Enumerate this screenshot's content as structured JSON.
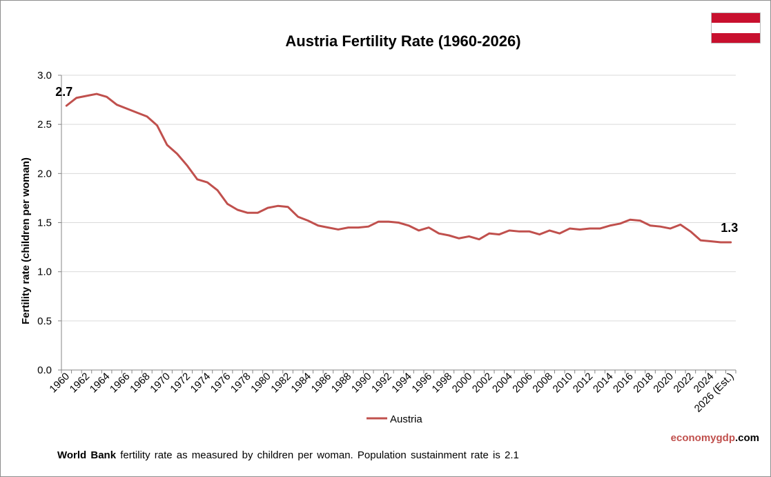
{
  "chart_data": {
    "type": "line",
    "title": "Austria Fertility Rate (1960-2026)",
    "ylabel": "Fertility rate (children per woman)",
    "xlabel": "",
    "ylim": [
      0,
      3.0
    ],
    "yticks": [
      "0.0",
      "0.5",
      "1.0",
      "1.5",
      "2.0",
      "2.5",
      "3.0"
    ],
    "grid": true,
    "legend_position": "bottom",
    "x": [
      "1960",
      "1961",
      "1962",
      "1963",
      "1964",
      "1965",
      "1966",
      "1967",
      "1968",
      "1969",
      "1970",
      "1971",
      "1972",
      "1973",
      "1974",
      "1975",
      "1976",
      "1977",
      "1978",
      "1979",
      "1980",
      "1981",
      "1982",
      "1983",
      "1984",
      "1985",
      "1986",
      "1987",
      "1988",
      "1989",
      "1990",
      "1991",
      "1992",
      "1993",
      "1994",
      "1995",
      "1996",
      "1997",
      "1998",
      "1999",
      "2000",
      "2001",
      "2002",
      "2003",
      "2004",
      "2005",
      "2006",
      "2007",
      "2008",
      "2009",
      "2010",
      "2011",
      "2012",
      "2013",
      "2014",
      "2015",
      "2016",
      "2017",
      "2018",
      "2019",
      "2020",
      "2021",
      "2022",
      "2023",
      "2024",
      "2025",
      "2026 (Est.)"
    ],
    "xtick_labels": [
      "1960",
      "1962",
      "1964",
      "1966",
      "1968",
      "1970",
      "1972",
      "1974",
      "1976",
      "1978",
      "1980",
      "1982",
      "1984",
      "1986",
      "1988",
      "1990",
      "1992",
      "1994",
      "1996",
      "1998",
      "2000",
      "2002",
      "2004",
      "2006",
      "2008",
      "2010",
      "2012",
      "2014",
      "2016",
      "2018",
      "2020",
      "2022",
      "2024",
      "2026 (Est.)"
    ],
    "series": [
      {
        "name": "Austria",
        "color": "#c0504d",
        "values": [
          2.69,
          2.77,
          2.79,
          2.81,
          2.78,
          2.7,
          2.66,
          2.62,
          2.58,
          2.49,
          2.29,
          2.2,
          2.08,
          1.94,
          1.91,
          1.83,
          1.69,
          1.63,
          1.6,
          1.6,
          1.65,
          1.67,
          1.66,
          1.56,
          1.52,
          1.47,
          1.45,
          1.43,
          1.45,
          1.45,
          1.46,
          1.51,
          1.51,
          1.5,
          1.47,
          1.42,
          1.45,
          1.39,
          1.37,
          1.34,
          1.36,
          1.33,
          1.39,
          1.38,
          1.42,
          1.41,
          1.41,
          1.38,
          1.42,
          1.39,
          1.44,
          1.43,
          1.44,
          1.44,
          1.47,
          1.49,
          1.53,
          1.52,
          1.47,
          1.46,
          1.44,
          1.48,
          1.41,
          1.32,
          1.31,
          1.3,
          1.3
        ]
      }
    ],
    "annotations": {
      "start_label": "2.7",
      "end_label": "1.3"
    }
  },
  "branding": {
    "part1": "economygdp",
    "part2": ".com"
  },
  "footnote": {
    "bold": "World Bank",
    "text": " fertility rate as measured by children per woman.  Population sustainment rate is 2.1"
  },
  "flag": {
    "name": "austria-flag-icon",
    "colors": [
      "#c8102e",
      "#ffffff",
      "#c8102e"
    ]
  }
}
